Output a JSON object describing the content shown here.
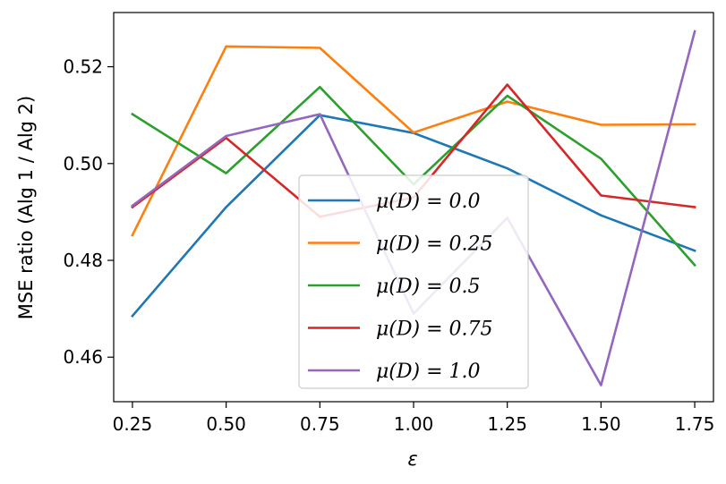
{
  "chart_data": {
    "type": "line",
    "xlabel": "ε",
    "ylabel": "MSE ratio (Alg 1 / Alg 2)",
    "x": [
      0.25,
      0.5,
      0.75,
      1.0,
      1.25,
      1.5,
      1.75
    ],
    "xticks": [
      0.25,
      0.5,
      0.75,
      1.0,
      1.25,
      1.5,
      1.75
    ],
    "xtick_labels": [
      "0.25",
      "0.50",
      "0.75",
      "1.00",
      "1.25",
      "1.50",
      "1.75"
    ],
    "yticks": [
      0.46,
      0.48,
      0.5,
      0.52
    ],
    "ytick_labels": [
      "0.46",
      "0.48",
      "0.50",
      "0.52"
    ],
    "xlim": [
      0.2,
      1.8
    ],
    "ylim": [
      0.4508,
      0.5312
    ],
    "grid": false,
    "legend_position": "lower-center",
    "series": [
      {
        "name": "μ(D) = 0.0",
        "color": "#1f77b4",
        "values": [
          0.4685,
          0.491,
          0.51,
          0.5063,
          0.499,
          0.4893,
          0.482
        ]
      },
      {
        "name": "μ(D) = 0.25",
        "color": "#ff7f0e",
        "values": [
          0.4852,
          0.5242,
          0.5239,
          0.5064,
          0.5128,
          0.508,
          0.5081
        ]
      },
      {
        "name": "μ(D) = 0.5",
        "color": "#2ca02c",
        "values": [
          0.5102,
          0.498,
          0.5158,
          0.4957,
          0.514,
          0.501,
          0.479
        ]
      },
      {
        "name": "μ(D) = 0.75",
        "color": "#d62728",
        "values": [
          0.491,
          0.5053,
          0.489,
          0.493,
          0.5163,
          0.4934,
          0.491
        ]
      },
      {
        "name": "μ(D) = 1.0",
        "color": "#9467bd",
        "values": [
          0.4913,
          0.5057,
          0.5102,
          0.469,
          0.4888,
          0.4542,
          0.5273
        ]
      }
    ]
  }
}
